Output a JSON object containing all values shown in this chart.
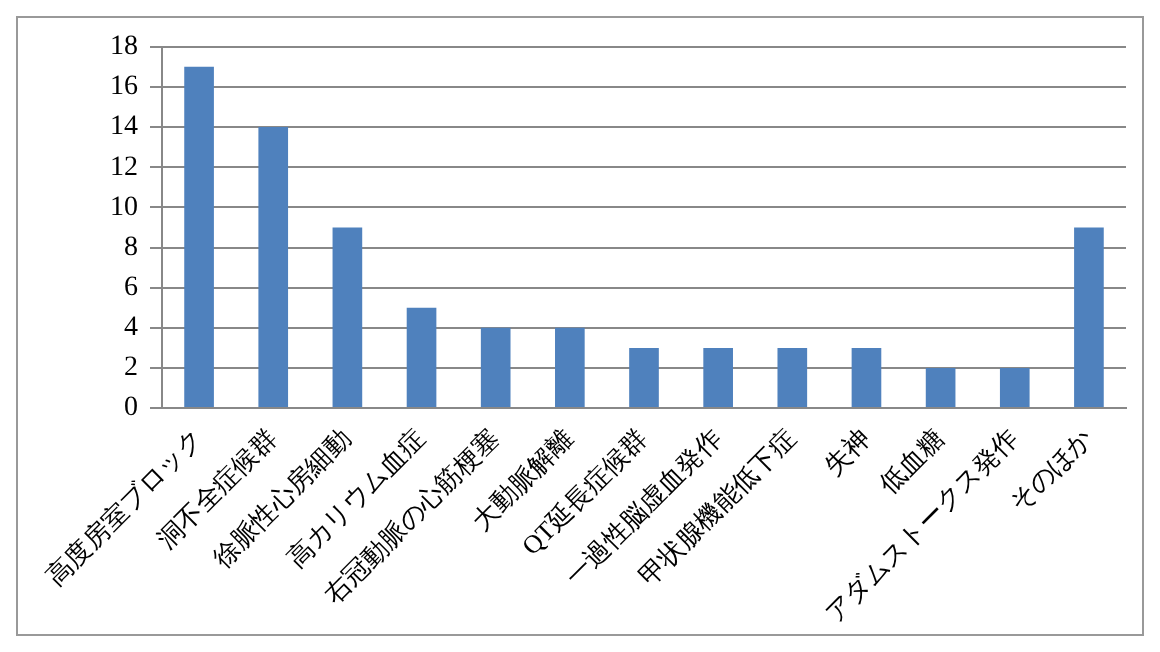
{
  "chart_data": {
    "type": "bar",
    "categories": [
      "高度房室ブロック",
      "洞不全症候群",
      "徐脈性心房細動",
      "高カリウム血症",
      "右冠動脈の心筋梗塞",
      "大動脈解離",
      "QT延長症候群",
      "一過性脳虚血発作",
      "甲状腺機能低下症",
      "失神",
      "低血糖",
      "アダムストークス発作",
      "そのほか"
    ],
    "values": [
      17,
      14,
      9,
      5,
      4,
      4,
      3,
      3,
      3,
      3,
      2,
      2,
      9
    ],
    "color": "#4f81bd",
    "ylim": [
      0,
      18
    ],
    "yticks": [
      0,
      2,
      4,
      6,
      8,
      10,
      12,
      14,
      16,
      18
    ],
    "grid": "y",
    "legend": false
  }
}
